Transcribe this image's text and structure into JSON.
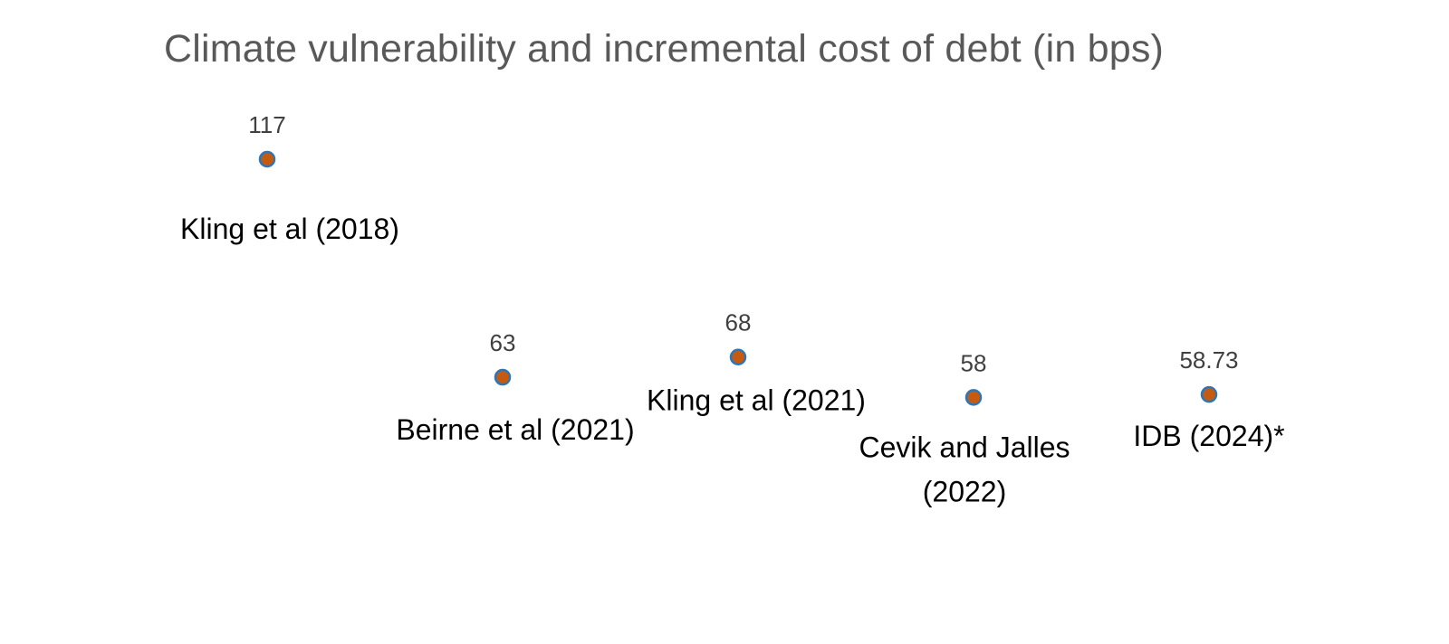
{
  "chart_data": {
    "type": "scatter",
    "title": "Climate vulnerability and incremental cost of debt (in bps)",
    "xlabel": "",
    "ylabel": "",
    "grid": false,
    "legend": "none",
    "ylim": [
      0,
      140
    ],
    "categories": [
      "Kling et al (2018)",
      "Beirne et al (2021)",
      "Kling et al (2021)",
      "Cevik and Jalles (2022)",
      "IDB (2024)*"
    ],
    "values": [
      117,
      63,
      68,
      58,
      58.73
    ],
    "data_labels": [
      "117",
      "63",
      "68",
      "58",
      "58.73"
    ],
    "category_label_lines": [
      [
        "Kling et al (2018)"
      ],
      [
        "Beirne et al (2021)"
      ],
      [
        "Kling et al (2021)"
      ],
      [
        "Cevik and Jalles",
        "(2022)"
      ],
      [
        "IDB (2024)*"
      ]
    ],
    "colors": {
      "marker_fill": "#C55A11",
      "marker_stroke": "#2E75B6",
      "title": "#595959",
      "value_label": "#404040",
      "category_label": "#000000"
    }
  }
}
